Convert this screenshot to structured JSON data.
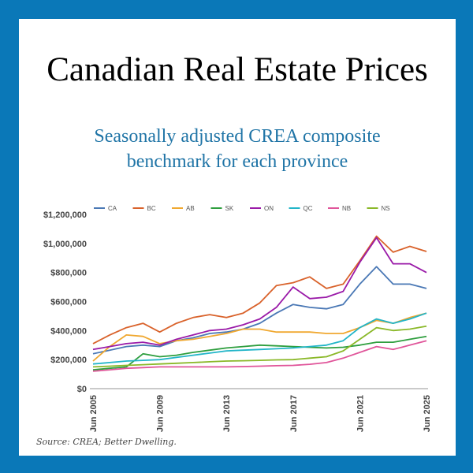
{
  "title": "Canadian Real Estate Prices",
  "subtitle_line1": "Seasonally adjusted CREA composite",
  "subtitle_line2": "benchmark for each province",
  "source": "Source: CREA; Better Dwelling.",
  "colors": {
    "frame": "#0a78b8",
    "subtitle": "#1f74a6"
  },
  "chart_data": {
    "type": "line",
    "title": "Canadian Real Estate Prices",
    "subtitle": "Seasonally adjusted CREA composite benchmark for each province",
    "xlabel": "",
    "ylabel": "",
    "ylim": [
      0,
      1200000
    ],
    "yticks": [
      "$0",
      "$200,000",
      "$400,000",
      "$600,000",
      "$800,000",
      "$1,000,000",
      "$1,200,000"
    ],
    "xticks": [
      "Jun 2005",
      "Jun 2009",
      "Jun 2013",
      "Jun 2017",
      "Jun 2021",
      "Jun 2025"
    ],
    "grid": false,
    "legend_position": "top",
    "x": [
      "2005",
      "2006",
      "2007",
      "2008",
      "2009",
      "2010",
      "2011",
      "2012",
      "2013",
      "2014",
      "2015",
      "2016",
      "2017",
      "2018",
      "2019",
      "2020",
      "2021",
      "2022",
      "2023",
      "2024",
      "2025"
    ],
    "series": [
      {
        "name": "CA",
        "color": "#4a78b5",
        "values": [
          240000,
          265000,
          290000,
          300000,
          290000,
          330000,
          350000,
          380000,
          390000,
          410000,
          450000,
          520000,
          580000,
          560000,
          550000,
          580000,
          720000,
          840000,
          720000,
          720000,
          690000
        ]
      },
      {
        "name": "BC",
        "color": "#d9622b",
        "values": [
          310000,
          370000,
          420000,
          450000,
          390000,
          450000,
          490000,
          510000,
          490000,
          520000,
          590000,
          710000,
          730000,
          770000,
          690000,
          720000,
          880000,
          1050000,
          940000,
          980000,
          945000
        ]
      },
      {
        "name": "AB",
        "color": "#f0a830",
        "values": [
          190000,
          290000,
          370000,
          360000,
          310000,
          330000,
          340000,
          360000,
          380000,
          410000,
          410000,
          390000,
          390000,
          390000,
          380000,
          380000,
          420000,
          470000,
          450000,
          490000,
          520000
        ]
      },
      {
        "name": "SK",
        "color": "#2e9e3e",
        "values": [
          130000,
          140000,
          150000,
          240000,
          220000,
          230000,
          250000,
          265000,
          280000,
          290000,
          300000,
          295000,
          290000,
          285000,
          280000,
          285000,
          300000,
          320000,
          320000,
          340000,
          360000
        ]
      },
      {
        "name": "ON",
        "color": "#9a1aa8",
        "values": [
          270000,
          290000,
          310000,
          320000,
          300000,
          340000,
          370000,
          400000,
          410000,
          440000,
          480000,
          560000,
          700000,
          620000,
          630000,
          670000,
          870000,
          1040000,
          860000,
          860000,
          800000
        ]
      },
      {
        "name": "QC",
        "color": "#22b5c8",
        "values": [
          170000,
          180000,
          190000,
          195000,
          200000,
          215000,
          230000,
          245000,
          260000,
          265000,
          270000,
          275000,
          280000,
          290000,
          300000,
          330000,
          420000,
          480000,
          450000,
          480000,
          520000
        ]
      },
      {
        "name": "NB",
        "color": "#e0559a",
        "values": [
          120000,
          130000,
          140000,
          145000,
          150000,
          150000,
          150000,
          150000,
          150000,
          152000,
          155000,
          158000,
          160000,
          168000,
          180000,
          210000,
          250000,
          290000,
          270000,
          300000,
          330000
        ]
      },
      {
        "name": "NS",
        "color": "#8ab828",
        "values": [
          150000,
          155000,
          160000,
          165000,
          170000,
          175000,
          180000,
          185000,
          190000,
          192000,
          195000,
          198000,
          200000,
          210000,
          220000,
          260000,
          340000,
          420000,
          400000,
          410000,
          430000
        ]
      }
    ]
  }
}
